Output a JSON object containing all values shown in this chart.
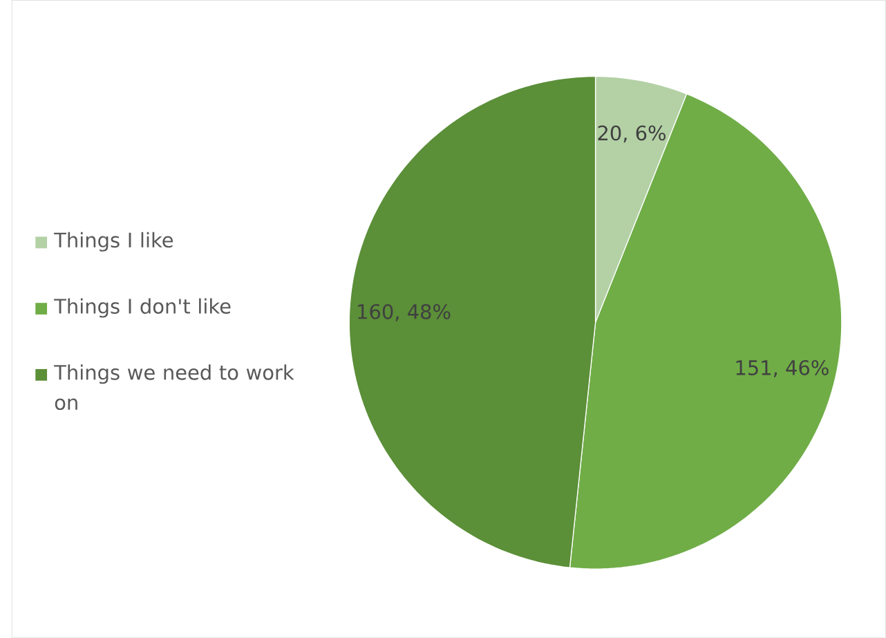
{
  "chart_data": {
    "type": "pie",
    "categories": [
      "Things I like",
      "Things I don't like",
      "Things we need to work on"
    ],
    "values": [
      20,
      151,
      160
    ],
    "colors": [
      "#b3d1a5",
      "#70ad47",
      "#5b8f38"
    ],
    "value_labels": [
      "20, 6%",
      "151, 46%",
      "160, 48%"
    ],
    "legend": "left"
  }
}
